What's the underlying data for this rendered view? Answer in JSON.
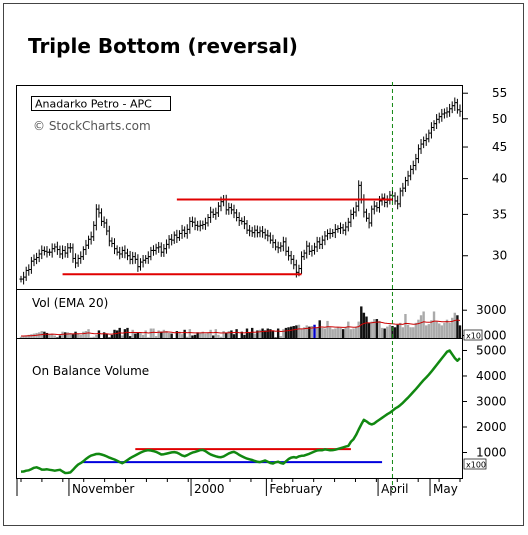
{
  "title": "Triple Bottom (reversal)",
  "chart_data": {
    "type": "stock-chart",
    "symbol_label": "Anadarko Petro - APC",
    "watermark": "© StockCharts.com",
    "x_labels": [
      "November",
      "2000",
      "February",
      "April",
      "May"
    ],
    "price_panel": {
      "y_ticks": [
        55,
        50,
        45,
        40,
        35,
        30
      ],
      "scale": "log",
      "ylim": [
        26.6,
        56.5
      ],
      "close_series": [
        27.5,
        27.7,
        28.4,
        28.5,
        29.4,
        29.6,
        29.8,
        30.2,
        30.6,
        30.5,
        30.4,
        30.4,
        30.8,
        31.0,
        30.7,
        30.2,
        30.6,
        30.3,
        30.9,
        30.9,
        29.7,
        29.2,
        29.7,
        29.9,
        30.7,
        31.2,
        31.9,
        32.2,
        33.6,
        35.7,
        35.2,
        34.1,
        33.9,
        32.9,
        31.7,
        31.4,
        30.8,
        30.4,
        30.2,
        30.6,
        30.3,
        30.0,
        29.6,
        29.9,
        29.6,
        28.8,
        29.3,
        29.5,
        29.7,
        29.9,
        30.6,
        30.6,
        30.9,
        31.0,
        30.4,
        30.8,
        31.3,
        31.9,
        31.8,
        32.4,
        32.1,
        32.6,
        33.0,
        32.6,
        33.1,
        34.1,
        34.0,
        33.6,
        33.5,
        33.6,
        33.7,
        33.9,
        34.6,
        35.3,
        35.0,
        35.2,
        36.1,
        36.7,
        37.0,
        35.6,
        35.9,
        35.6,
        35.2,
        34.6,
        34.2,
        34.1,
        33.8,
        33.0,
        32.9,
        32.7,
        33.0,
        32.7,
        32.9,
        32.7,
        32.4,
        32.3,
        31.8,
        31.5,
        31.0,
        30.9,
        31.1,
        31.6,
        30.5,
        30.0,
        29.6,
        29.0,
        28.2,
        28.6,
        29.9,
        30.3,
        31.1,
        30.5,
        30.6,
        31.0,
        31.6,
        31.3,
        31.8,
        32.3,
        32.6,
        32.6,
        32.7,
        33.1,
        33.2,
        33.3,
        33.0,
        33.4,
        34.0,
        35.0,
        35.3,
        36.1,
        39.0,
        37.0,
        35.3,
        34.5,
        33.9,
        35.7,
        36.1,
        35.9,
        36.8,
        37.2,
        36.6,
        36.9,
        37.6,
        37.5,
        36.8,
        36.4,
        38.2,
        38.6,
        39.7,
        40.4,
        41.4,
        42.0,
        43.1,
        44.7,
        45.5,
        46.1,
        46.4,
        47.4,
        48.4,
        49.1,
        49.9,
        50.4,
        50.9,
        51.1,
        51.3,
        51.9,
        52.5,
        53.1,
        51.7,
        51.4
      ],
      "resistance_line": {
        "from_index": 60,
        "to_index": 143,
        "value": 37.0
      },
      "support_line": {
        "from_index": 16,
        "to_index": 108,
        "value": 28.0
      }
    },
    "volume_panel": {
      "label": "Vol (EMA 20)",
      "y_ticks": [
        3000,
        1000
      ],
      "multiplier_label": "x10",
      "volumes": [
        900,
        950,
        1000,
        1050,
        1100,
        1150,
        1200,
        1250,
        1350,
        1300,
        1200,
        1100,
        1150,
        1000,
        850,
        1000,
        1300,
        1250,
        1250,
        1200,
        1100,
        1300,
        1150,
        1050,
        1300,
        1350,
        1500,
        850,
        900,
        1050,
        1400,
        800,
        1250,
        1150,
        850,
        1050,
        1450,
        1400,
        1600,
        1000,
        1500,
        1600,
        950,
        1450,
        1150,
        1250,
        1200,
        1050,
        1400,
        850,
        1550,
        1550,
        950,
        1400,
        1300,
        1450,
        1350,
        1200,
        1150,
        800,
        1350,
        1300,
        1100,
        1450,
        900,
        1500,
        1000,
        1050,
        1250,
        1200,
        1300,
        1150,
        1250,
        1450,
        1000,
        1500,
        1050,
        900,
        1350,
        1200,
        1350,
        1400,
        1100,
        1500,
        800,
        1300,
        1050,
        1550,
        1250,
        1600,
        1150,
        1400,
        1450,
        1550,
        1400,
        1550,
        1500,
        1400,
        850,
        1550,
        950,
        1500,
        1600,
        1650,
        1700,
        1750,
        1800,
        1850,
        1550,
        1650,
        1800,
        1700,
        1750,
        1850,
        1650,
        2200,
        1600,
        1550,
        2150,
        1650,
        1500,
        1550,
        1650,
        1600,
        1500,
        1650,
        2100,
        1500,
        1550,
        1700,
        2100,
        3300,
        2800,
        2500,
        2000,
        2100,
        2300,
        2300,
        2150,
        1600,
        1550,
        1700,
        1850,
        1750,
        1650,
        1850,
        2000,
        1650,
        2700,
        1850,
        1650,
        1650,
        2000,
        2250,
        2600,
        2900,
        1800,
        1900,
        2200,
        2900,
        2100,
        1950,
        1800,
        2000,
        2250,
        2000,
        2400,
        2800,
        2600,
        1800
      ],
      "ema_series": [
        960,
        961,
        965,
        973,
        985,
        1001,
        1020,
        1042,
        1070,
        1092,
        1103,
        1103,
        1108,
        1098,
        1074,
        1067,
        1090,
        1105,
        1119,
        1127,
        1124,
        1141,
        1142,
        1133,
        1152,
        1171,
        1203,
        1169,
        1148,
        1138,
        1162,
        1128,
        1140,
        1139,
        1111,
        1105,
        1138,
        1168,
        1210,
        1190,
        1220,
        1254,
        1225,
        1246,
        1237,
        1238,
        1235,
        1217,
        1235,
        1198,
        1231,
        1262,
        1233,
        1249,
        1254,
        1273,
        1280,
        1272,
        1260,
        1216,
        1229,
        1236,
        1223,
        1244,
        1211,
        1239,
        1216,
        1200,
        1205,
        1205,
        1214,
        1208,
        1212,
        1235,
        1213,
        1241,
        1223,
        1192,
        1207,
        1207,
        1220,
        1238,
        1225,
        1251,
        1208,
        1217,
        1201,
        1234,
        1236,
        1271,
        1259,
        1272,
        1290,
        1315,
        1323,
        1349,
        1364,
        1367,
        1333,
        1354,
        1315,
        1333,
        1359,
        1387,
        1416,
        1447,
        1481,
        1517,
        1520,
        1533,
        1559,
        1572,
        1589,
        1614,
        1618,
        1674,
        1667,
        1656,
        1698,
        1694,
        1676,
        1664,
        1663,
        1657,
        1642,
        1644,
        1688,
        1670,
        1658,
        1662,
        1704,
        1856,
        1946,
        1999,
        1999,
        2009,
        2037,
        2062,
        2070,
        2025,
        1980,
        1954,
        1942,
        1924,
        1898,
        1894,
        1904,
        1880,
        1958,
        1947,
        1919,
        1893,
        1904,
        1937,
        2000,
        2086,
        2059,
        2043,
        2058,
        2138,
        2135,
        2118,
        2088,
        2079,
        2096,
        2087,
        2117,
        2182,
        2222,
        2182
      ],
      "highlight_index": 113,
      "ylim": [
        800,
        4600
      ]
    },
    "obv_panel": {
      "label": "On Balance Volume",
      "y_ticks": [
        5000,
        4000,
        3000,
        2000,
        1000
      ],
      "multiplier_label": "x100",
      "obv_series": [
        250,
        255,
        285,
        300,
        350,
        400,
        420,
        380,
        330,
        330,
        340,
        320,
        305,
        285,
        305,
        320,
        255,
        195,
        200,
        220,
        320,
        435,
        525,
        585,
        655,
        745,
        820,
        880,
        910,
        940,
        945,
        920,
        890,
        845,
        800,
        760,
        725,
        680,
        625,
        580,
        635,
        705,
        775,
        835,
        885,
        940,
        995,
        1040,
        1075,
        1090,
        1080,
        1055,
        1025,
        975,
        920,
        935,
        955,
        980,
        1005,
        1015,
        995,
        945,
        885,
        855,
        895,
        950,
        995,
        1025,
        1055,
        1095,
        1100,
        1055,
        985,
        925,
        885,
        850,
        825,
        815,
        845,
        905,
        965,
        1005,
        1025,
        975,
        905,
        855,
        805,
        760,
        735,
        705,
        665,
        635,
        625,
        655,
        685,
        640,
        590,
        570,
        615,
        640,
        590,
        565,
        655,
        745,
        800,
        820,
        800,
        845,
        870,
        880,
        915,
        950,
        995,
        1040,
        1080,
        1095,
        1090,
        1120,
        1105,
        1085,
        1095,
        1110,
        1140,
        1170,
        1200,
        1230,
        1260,
        1420,
        1520,
        1690,
        1900,
        2100,
        2280,
        2220,
        2140,
        2100,
        2140,
        2220,
        2290,
        2360,
        2430,
        2500,
        2560,
        2640,
        2720,
        2780,
        2860,
        2950,
        3050,
        3150,
        3260,
        3370,
        3480,
        3600,
        3720,
        3840,
        3940,
        4050,
        4170,
        4300,
        4430,
        4560,
        4690,
        4820,
        4950,
        5000,
        4850,
        4700,
        4600,
        4700
      ],
      "resistance_line": {
        "from_index": 44,
        "to_index": 127,
        "value": 1130
      },
      "support_line": {
        "from_index": 24,
        "to_index": 139,
        "value": 620
      },
      "ylim": [
        0,
        5450
      ]
    },
    "marker_index": 143,
    "legend": "none",
    "grid": false
  }
}
